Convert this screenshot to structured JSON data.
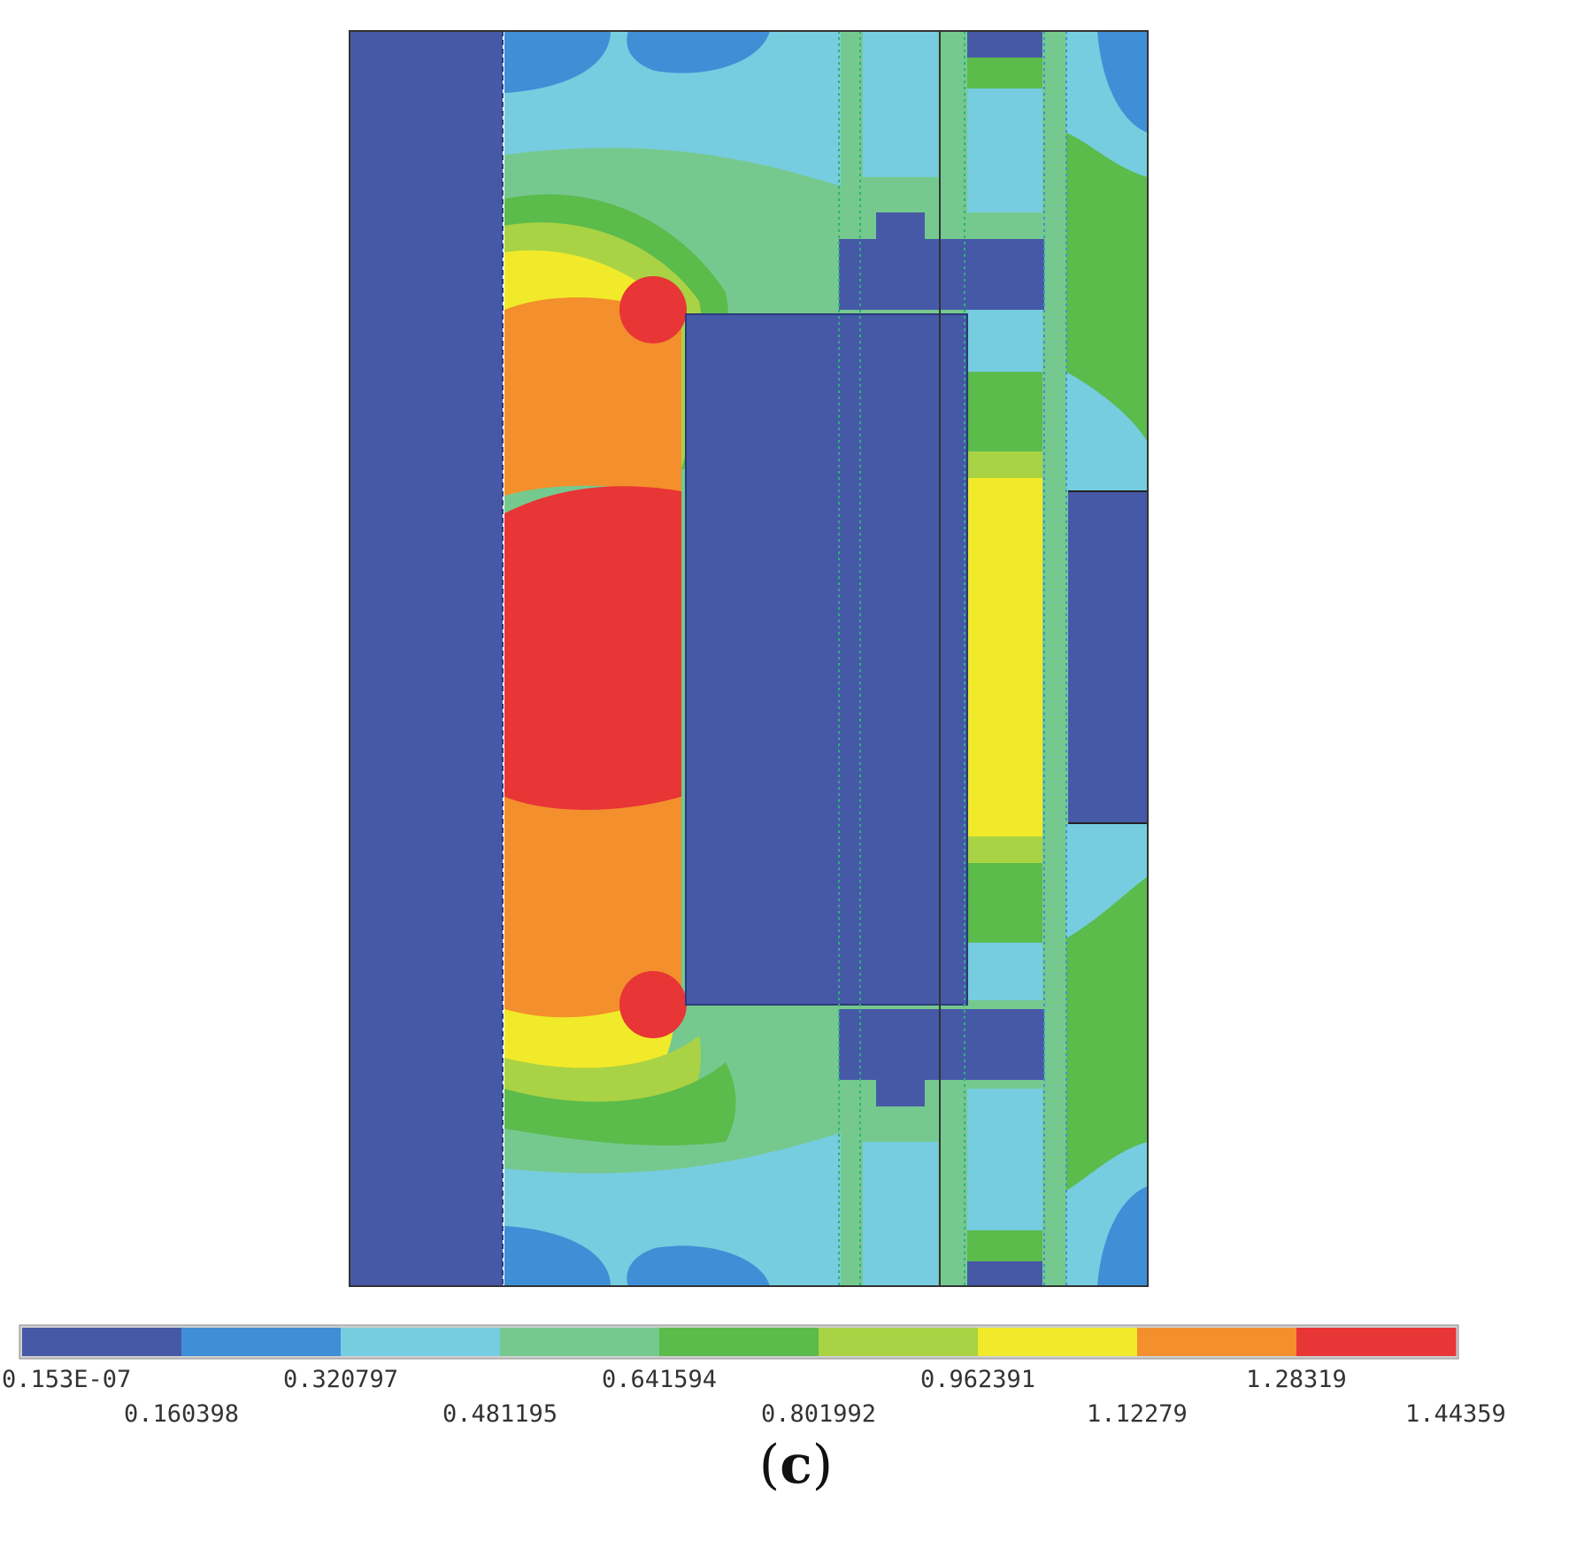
{
  "figure": {
    "panel_label_open": "(",
    "panel_label_letter": "c",
    "panel_label_close": ")"
  },
  "colorbar": {
    "colors": [
      "#4659a7",
      "#3f8fd6",
      "#76cde0",
      "#76c98e",
      "#5bbb4b",
      "#a9d344",
      "#f1ea2a",
      "#f38f2c",
      "#e83536"
    ],
    "tick_labels": [
      "0.153E-07",
      "0.160398",
      "0.320797",
      "0.481195",
      "0.641594",
      "0.801992",
      "0.962391",
      "1.12279",
      "1.28319",
      "1.44359"
    ],
    "tick_values": [
      1.53e-08,
      0.160398,
      0.320797,
      0.481195,
      0.641594,
      0.801992,
      0.962391,
      1.12279,
      1.28319,
      1.44359
    ]
  },
  "contour_plot": {
    "color_scale": "9-level discrete",
    "regions": [
      "left-core",
      "central-armature",
      "right-yoke",
      "upper-pole-piece",
      "lower-pole-piece",
      "upper-right-coil",
      "lower-right-coil"
    ]
  }
}
